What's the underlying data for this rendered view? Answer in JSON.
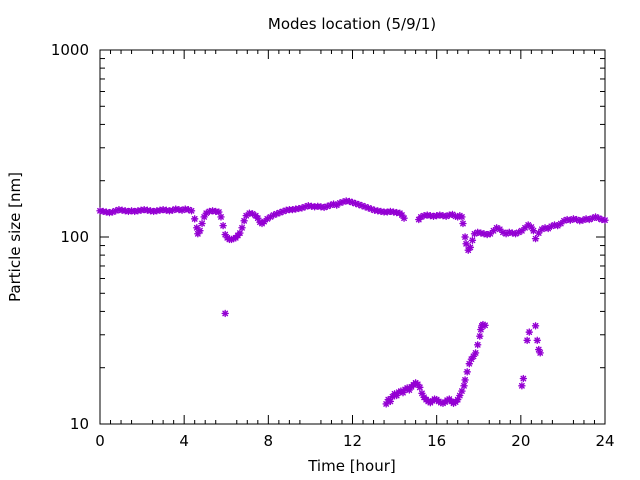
{
  "chart_data": {
    "type": "scatter",
    "title": "Modes location (5/9/1)",
    "xlabel": "Time [hour]",
    "ylabel": "Particle size [nm]",
    "xlim": [
      0,
      24
    ],
    "ylim": [
      10,
      1000
    ],
    "yscale": "log",
    "x_ticks": [
      0,
      4,
      8,
      12,
      16,
      20,
      24
    ],
    "y_ticks": [
      10,
      100,
      1000
    ],
    "grid": false,
    "legend": "none",
    "marker_color": "#9400d3",
    "marker": "asterisk",
    "series": [
      {
        "points": [
          [
            0.0,
            138
          ],
          [
            0.15,
            137
          ],
          [
            0.3,
            136
          ],
          [
            0.45,
            135
          ],
          [
            0.6,
            136
          ],
          [
            0.75,
            138
          ],
          [
            0.9,
            140
          ],
          [
            1.05,
            139
          ],
          [
            1.2,
            138
          ],
          [
            1.35,
            137
          ],
          [
            1.5,
            138
          ],
          [
            1.65,
            137
          ],
          [
            1.8,
            138
          ],
          [
            1.95,
            139
          ],
          [
            2.1,
            140
          ],
          [
            2.25,
            139
          ],
          [
            2.4,
            138
          ],
          [
            2.55,
            137
          ],
          [
            2.7,
            138
          ],
          [
            2.85,
            139
          ],
          [
            3.0,
            140
          ],
          [
            3.15,
            139
          ],
          [
            3.3,
            138
          ],
          [
            3.45,
            139
          ],
          [
            3.6,
            141
          ],
          [
            3.75,
            140
          ],
          [
            3.9,
            139
          ],
          [
            4.05,
            141
          ],
          [
            4.2,
            140
          ],
          [
            4.35,
            138
          ],
          [
            4.5,
            125
          ],
          [
            4.6,
            112
          ],
          [
            4.65,
            104
          ],
          [
            4.75,
            108
          ],
          [
            4.85,
            118
          ],
          [
            4.95,
            128
          ],
          [
            5.05,
            134
          ],
          [
            5.2,
            137
          ],
          [
            5.35,
            138
          ],
          [
            5.5,
            137
          ],
          [
            5.65,
            136
          ],
          [
            5.75,
            128
          ],
          [
            5.85,
            115
          ],
          [
            5.95,
            103
          ],
          [
            6.05,
            99
          ],
          [
            6.15,
            97
          ],
          [
            6.25,
            97
          ],
          [
            6.35,
            98
          ],
          [
            6.45,
            99
          ],
          [
            6.55,
            102
          ],
          [
            6.65,
            105
          ],
          [
            6.75,
            112
          ],
          [
            6.85,
            122
          ],
          [
            6.95,
            130
          ],
          [
            7.1,
            134
          ],
          [
            7.25,
            133
          ],
          [
            7.4,
            130
          ],
          [
            7.5,
            126
          ],
          [
            7.6,
            120
          ],
          [
            7.7,
            118
          ],
          [
            7.8,
            121
          ],
          [
            7.95,
            125
          ],
          [
            8.1,
            128
          ],
          [
            8.25,
            131
          ],
          [
            8.4,
            133
          ],
          [
            8.55,
            135
          ],
          [
            8.7,
            137
          ],
          [
            8.85,
            139
          ],
          [
            9.0,
            140
          ],
          [
            9.15,
            140
          ],
          [
            9.3,
            141
          ],
          [
            9.45,
            142
          ],
          [
            9.6,
            143
          ],
          [
            9.75,
            145
          ],
          [
            9.9,
            147
          ],
          [
            10.05,
            146
          ],
          [
            10.2,
            145
          ],
          [
            10.35,
            146
          ],
          [
            10.5,
            145
          ],
          [
            10.65,
            144
          ],
          [
            10.8,
            146
          ],
          [
            10.95,
            148
          ],
          [
            11.1,
            150
          ],
          [
            11.25,
            148
          ],
          [
            11.4,
            152
          ],
          [
            11.55,
            154
          ],
          [
            11.7,
            156
          ],
          [
            11.85,
            155
          ],
          [
            12.0,
            153
          ],
          [
            12.15,
            151
          ],
          [
            12.3,
            149
          ],
          [
            12.45,
            147
          ],
          [
            12.6,
            145
          ],
          [
            12.75,
            143
          ],
          [
            12.9,
            141
          ],
          [
            13.05,
            139
          ],
          [
            13.2,
            138
          ],
          [
            13.35,
            137
          ],
          [
            13.5,
            136
          ],
          [
            13.65,
            136
          ],
          [
            13.8,
            137
          ],
          [
            13.95,
            136
          ],
          [
            14.1,
            135
          ],
          [
            14.25,
            134
          ],
          [
            14.35,
            131
          ],
          [
            14.45,
            126
          ],
          [
            15.15,
            124
          ],
          [
            15.25,
            128
          ],
          [
            15.4,
            130
          ],
          [
            15.55,
            131
          ],
          [
            15.7,
            130
          ],
          [
            15.85,
            129
          ],
          [
            16.0,
            130
          ],
          [
            16.15,
            131
          ],
          [
            16.3,
            130
          ],
          [
            16.45,
            129
          ],
          [
            16.6,
            131
          ],
          [
            16.75,
            132
          ],
          [
            16.9,
            129
          ],
          [
            17.0,
            128
          ],
          [
            17.1,
            130
          ],
          [
            17.2,
            128
          ],
          [
            17.25,
            118
          ],
          [
            17.35,
            100
          ],
          [
            17.4,
            92
          ],
          [
            17.5,
            85
          ],
          [
            17.6,
            88
          ],
          [
            17.7,
            96
          ],
          [
            17.8,
            104
          ],
          [
            17.95,
            106
          ],
          [
            18.1,
            105
          ],
          [
            18.25,
            104
          ],
          [
            18.4,
            103
          ],
          [
            18.55,
            104
          ],
          [
            18.7,
            108
          ],
          [
            18.85,
            112
          ],
          [
            19.0,
            110
          ],
          [
            19.15,
            106
          ],
          [
            19.3,
            104
          ],
          [
            19.45,
            106
          ],
          [
            19.6,
            105
          ],
          [
            19.75,
            104
          ],
          [
            19.9,
            106
          ],
          [
            20.05,
            108
          ],
          [
            20.2,
            112
          ],
          [
            20.35,
            116
          ],
          [
            20.5,
            113
          ],
          [
            20.6,
            108
          ],
          [
            20.7,
            98
          ],
          [
            20.85,
            105
          ],
          [
            21.0,
            110
          ],
          [
            21.15,
            112
          ],
          [
            21.3,
            111
          ],
          [
            21.45,
            114
          ],
          [
            21.6,
            116
          ],
          [
            21.75,
            115
          ],
          [
            21.9,
            118
          ],
          [
            22.05,
            122
          ],
          [
            22.2,
            124
          ],
          [
            22.35,
            123
          ],
          [
            22.5,
            125
          ],
          [
            22.65,
            124
          ],
          [
            22.8,
            122
          ],
          [
            22.95,
            123
          ],
          [
            23.1,
            125
          ],
          [
            23.25,
            124
          ],
          [
            23.4,
            126
          ],
          [
            23.55,
            128
          ],
          [
            23.7,
            126
          ],
          [
            23.85,
            124
          ],
          [
            24.0,
            123
          ]
        ]
      },
      {
        "points": [
          [
            5.95,
            39
          ],
          [
            13.6,
            12.8
          ],
          [
            13.7,
            13.5
          ],
          [
            13.8,
            13.2
          ],
          [
            13.9,
            14.0
          ],
          [
            14.0,
            14.5
          ],
          [
            14.1,
            14.2
          ],
          [
            14.2,
            14.8
          ],
          [
            14.3,
            15.0
          ],
          [
            14.4,
            14.7
          ],
          [
            14.5,
            15.3
          ],
          [
            14.6,
            15.6
          ],
          [
            14.7,
            15.2
          ],
          [
            14.8,
            15.8
          ],
          [
            14.9,
            16.2
          ],
          [
            15.0,
            16.6
          ],
          [
            15.1,
            16.3
          ],
          [
            15.2,
            15.7
          ],
          [
            15.3,
            14.6
          ],
          [
            15.4,
            13.9
          ],
          [
            15.5,
            13.5
          ],
          [
            15.6,
            13.2
          ],
          [
            15.7,
            13.0
          ],
          [
            15.8,
            13.3
          ],
          [
            15.9,
            13.6
          ],
          [
            16.0,
            13.5
          ],
          [
            16.1,
            13.2
          ],
          [
            16.2,
            13.0
          ],
          [
            16.3,
            12.9
          ],
          [
            16.4,
            13.1
          ],
          [
            16.5,
            13.4
          ],
          [
            16.6,
            13.6
          ],
          [
            16.7,
            13.2
          ],
          [
            16.8,
            12.9
          ],
          [
            16.9,
            13.1
          ],
          [
            17.0,
            13.5
          ],
          [
            17.1,
            14.2
          ],
          [
            17.2,
            15.0
          ],
          [
            17.3,
            16.0
          ],
          [
            17.35,
            17.2
          ],
          [
            17.45,
            19.0
          ],
          [
            17.55,
            21.0
          ],
          [
            17.65,
            22.2
          ],
          [
            17.75,
            23.0
          ],
          [
            17.85,
            24.0
          ],
          [
            17.95,
            26.5
          ],
          [
            18.05,
            29.5
          ],
          [
            18.1,
            32.0
          ],
          [
            18.15,
            33.5
          ],
          [
            18.2,
            34.0
          ],
          [
            18.3,
            33.7
          ],
          [
            20.05,
            16.0
          ],
          [
            20.12,
            17.5
          ],
          [
            20.3,
            28.0
          ],
          [
            20.4,
            31.0
          ],
          [
            20.7,
            33.5
          ],
          [
            20.78,
            28.0
          ],
          [
            20.85,
            25.0
          ],
          [
            20.92,
            24.0
          ]
        ]
      }
    ]
  }
}
